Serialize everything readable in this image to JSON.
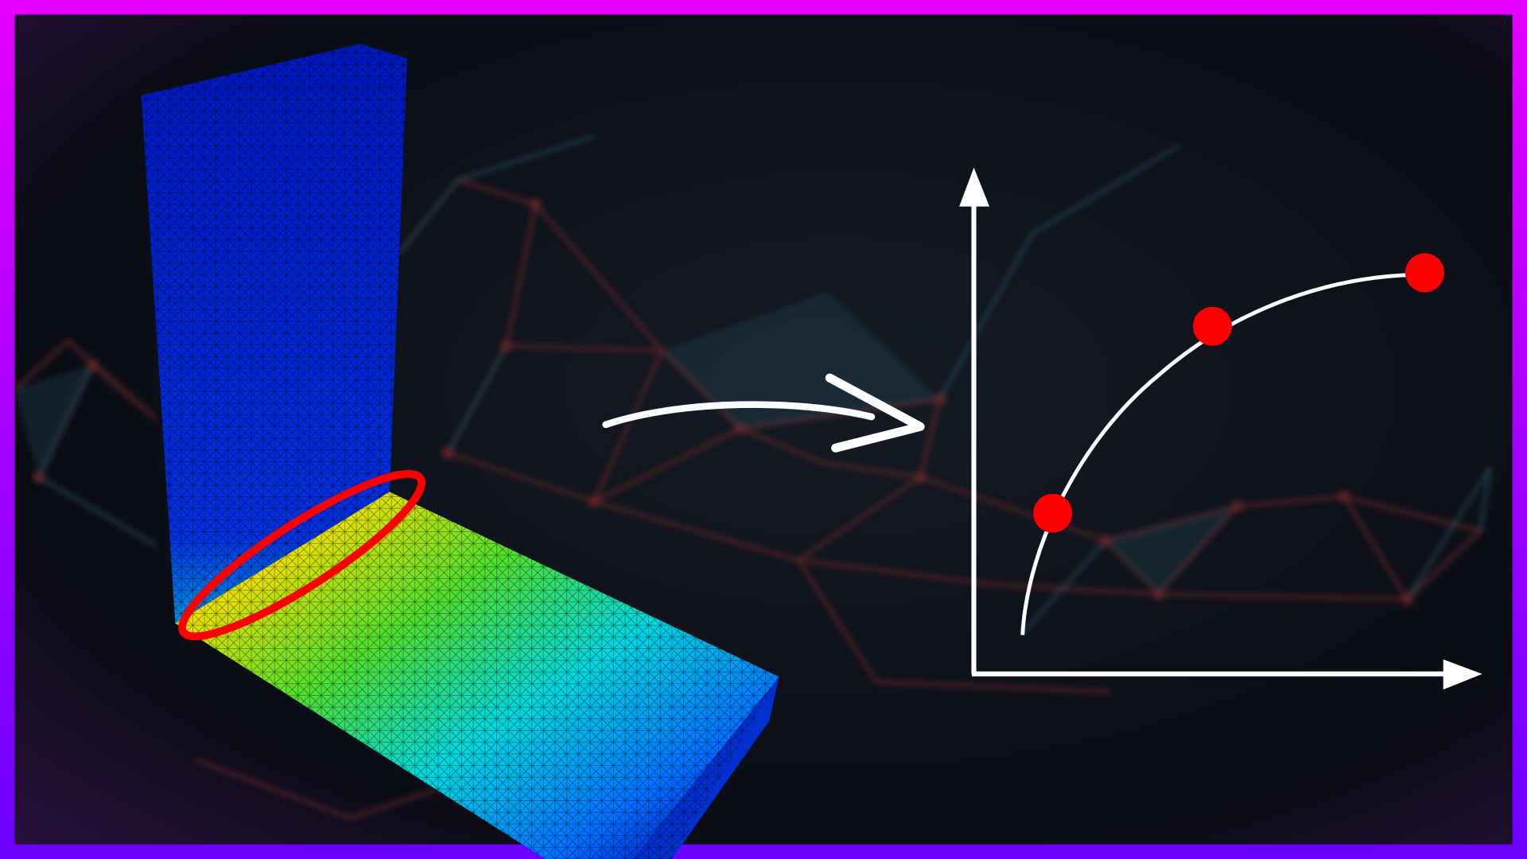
{
  "frame": {
    "border_top_color": "#e600ff",
    "border_bottom_color": "#6a00ff"
  },
  "background": {
    "base_color": "#0a0c14",
    "network_line_colors": [
      "#7a2a2a",
      "#2a5a6a"
    ]
  },
  "model": {
    "name_icon": "fem-l-bracket-mesh",
    "colormap": [
      "#0010c8",
      "#0060ff",
      "#00d8e8",
      "#40e040",
      "#e8e800",
      "#ff6000"
    ],
    "highlight_color": "#ff0000"
  },
  "arrow": {
    "icon": "curved-arrow-right",
    "color": "#ffffff"
  },
  "graph": {
    "icon": "xy-axes-curve",
    "axis_color": "#ffffff",
    "point_color": "#ff0000"
  }
}
